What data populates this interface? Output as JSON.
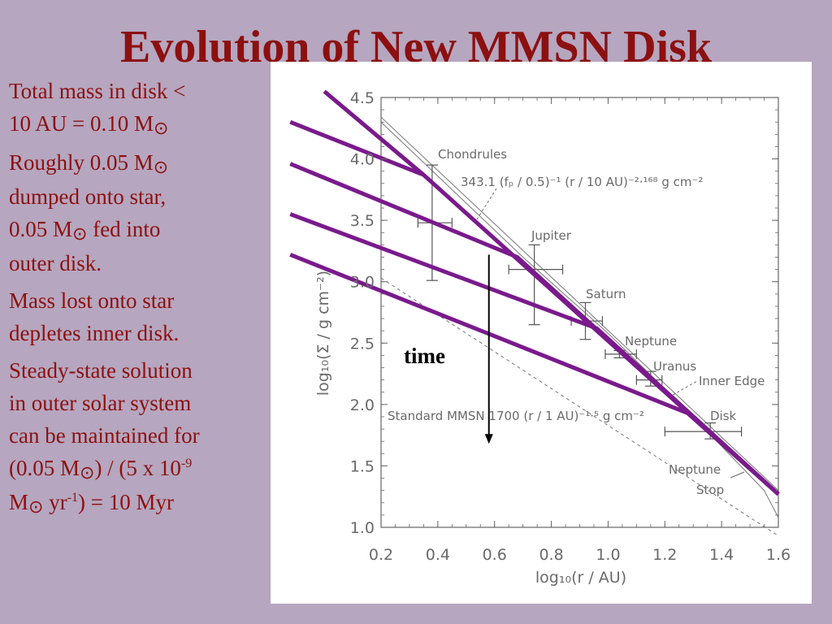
{
  "slide": {
    "title": "Evolution of New MMSN Disk",
    "bullets": [
      {
        "parts": [
          "Total mass in disk <",
          "10 AU = 0.10 M",
          "⊙"
        ]
      },
      {
        "parts": [
          "Roughly 0.05 M",
          "⊙",
          "dumped onto star,",
          "0.05 M",
          "⊙",
          " fed into",
          "outer disk."
        ]
      },
      {
        "parts": [
          "Mass lost onto star",
          "depletes inner disk."
        ]
      },
      {
        "parts": [
          "Steady-state solution",
          "in outer solar system",
          "can be maintained for",
          "(0.05 M",
          "⊙",
          ") / (5 x 10",
          "-9",
          "M",
          "⊙",
          " yr",
          "-1",
          ") = 10 Myr"
        ]
      }
    ]
  },
  "chart_data": {
    "type": "line",
    "xlabel": "log₁₀(r / AU)",
    "ylabel": "log₁₀(Σ / g cm⁻²)",
    "xlim": [
      0.2,
      1.6
    ],
    "ylim": [
      1.0,
      4.5
    ],
    "xticks": [
      "0.2",
      "0.4",
      "0.6",
      "0.8",
      "1.0",
      "1.2",
      "1.4",
      "1.6"
    ],
    "yticks": [
      "1.0",
      "1.5",
      "2.0",
      "2.5",
      "3.0",
      "3.5",
      "4.0",
      "4.5"
    ],
    "planets": [
      {
        "name": "Chondrules",
        "x": 0.38,
        "y": 3.48,
        "xerr": [
          0.33,
          0.45
        ],
        "yerr": [
          3.01,
          3.95
        ]
      },
      {
        "name": "Jupiter",
        "x": 0.74,
        "y": 3.1,
        "xerr": [
          0.65,
          0.84
        ],
        "yerr": [
          2.65,
          3.3
        ]
      },
      {
        "name": "Saturn",
        "x": 0.92,
        "y": 2.68,
        "xerr": [
          0.87,
          0.98
        ],
        "yerr": [
          2.53,
          2.83
        ]
      },
      {
        "name": "Neptune",
        "x": 1.04,
        "y": 2.41,
        "xerr": [
          0.99,
          1.1
        ],
        "yerr": [
          2.38,
          2.44
        ]
      },
      {
        "name": "Uranus",
        "x": 1.15,
        "y": 2.2,
        "xerr": [
          1.1,
          1.19
        ],
        "yerr": [
          2.15,
          2.27
        ]
      },
      {
        "name": "Disk",
        "x": 1.36,
        "y": 1.78,
        "xerr": [
          1.2,
          1.47
        ],
        "yerr": [
          1.72,
          1.85
        ]
      }
    ],
    "reference_lines": [
      {
        "label": "343.1 (fₚ / 0.5)⁻¹ (r / 10 AU)⁻²·¹⁶⁸ g cm⁻²",
        "x": [
          0.2,
          1.6
        ],
        "y": [
          4.34,
          1.3
        ]
      },
      {
        "label": "Standard MMSN 1700 (r / 1 AU)⁻¹·⁵ g cm⁻²",
        "x": [
          0.2,
          1.6
        ],
        "y": [
          3.03,
          0.93
        ],
        "style": "dashed"
      }
    ],
    "model_curve": {
      "x": [
        0.2,
        0.7,
        1.0,
        1.3,
        1.55,
        1.6
      ],
      "y": [
        4.3,
        3.2,
        2.58,
        1.9,
        1.3,
        1.08
      ]
    },
    "series": [
      {
        "x": [
          0.0,
          0.35,
          1.6
        ],
        "y": [
          4.55,
          3.87,
          1.27
        ]
      },
      {
        "x": [
          -0.12,
          0.35
        ],
        "y": [
          4.3,
          3.87
        ]
      },
      {
        "x": [
          -0.12,
          0.68,
          1.6
        ],
        "y": [
          3.96,
          3.2,
          1.27
        ]
      },
      {
        "x": [
          -0.12,
          0.96,
          1.6
        ],
        "y": [
          3.55,
          2.62,
          1.27
        ]
      },
      {
        "x": [
          -0.12,
          1.28,
          1.6
        ],
        "y": [
          3.22,
          1.93,
          1.27
        ]
      }
    ],
    "time_arrow": {
      "label": "time",
      "x": 0.58,
      "y_from": 3.22,
      "y_to": 1.68
    },
    "annotations": [
      "Inner Edge",
      "Neptune",
      "Stop"
    ],
    "colors": {
      "model_lines": "#7a1a8c",
      "axes": "#666666"
    }
  }
}
